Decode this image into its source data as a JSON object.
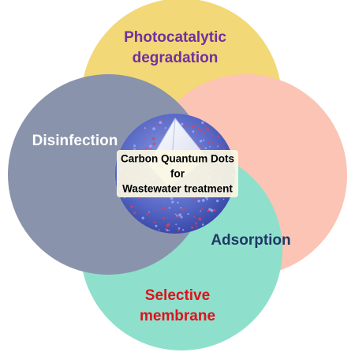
{
  "diagram": {
    "center": {
      "lines": [
        "Carbon Quantum Dots",
        "for",
        "Wastewater treatment"
      ],
      "text_color": "#000000",
      "box_color": "#fbf7e4"
    },
    "petals": [
      {
        "key": "photocatalytic",
        "lines": [
          "Photocatalytic",
          "degradation"
        ],
        "fill": "#f2d877",
        "text_color": "#7030a0"
      },
      {
        "key": "adsorption",
        "lines": [
          "Adsorption"
        ],
        "fill": "#fbc4b4",
        "text_color": "#203864"
      },
      {
        "key": "selective",
        "lines": [
          "Selective",
          "membrane"
        ],
        "fill": "#8ee0cc",
        "text_color": "#e0101a"
      },
      {
        "key": "disinfection",
        "lines": [
          "Disinfection"
        ],
        "fill": "#8a93ac",
        "text_color": "#ffffff"
      }
    ],
    "sphere": {
      "shell_color": "#5566c4",
      "dot_color": "#e0405a",
      "core_color": "#eef0fa"
    }
  }
}
